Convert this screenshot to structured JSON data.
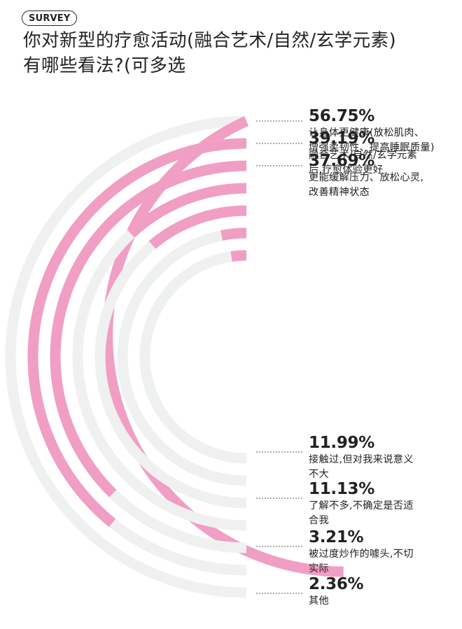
{
  "badge": "SURVEY",
  "title_line1": "你对新型的疗愈活动(融合艺术/自然/玄学元素)",
  "title_line2": "有哪些看法?(可多选",
  "colors": {
    "fill": "#f19ec4",
    "track": "#eff1f1",
    "leader": "#555555"
  },
  "chart_data": {
    "type": "radial-bar",
    "max": 100,
    "unit": "%",
    "categories": [
      "让身体更健康(放松肌肉、增强柔韧性、提高睡眠质量)",
      "融合艺术/自然/玄学元素后,疗愈体验更好",
      "更能缓解压力、放松心灵,改善精神状态",
      "接触过,但对我来说意义不大",
      "了解不多,不确定是否适合我",
      "被过度炒作的噱头,不切实际",
      "其他"
    ],
    "values": [
      56.75,
      39.19,
      37.69,
      11.99,
      11.13,
      3.21,
      2.36
    ],
    "labels": [
      {
        "pct": "56.75%",
        "lines": [
          "让身体更健康(放松肌肉、",
          "增强柔韧性、提高睡眠质量)"
        ]
      },
      {
        "pct": "39.19%",
        "lines": [
          "融合艺术/自然/玄学元素",
          "后,疗愈体验更好"
        ]
      },
      {
        "pct": "37.69%",
        "lines": [
          "更能缓解压力、放松心灵,",
          "改善精神状态"
        ]
      },
      {
        "pct": "11.99%",
        "lines": [
          "接触过,但对我来说意义",
          "不大"
        ]
      },
      {
        "pct": "11.13%",
        "lines": [
          "了解不多,不确定是否适",
          "合我"
        ]
      },
      {
        "pct": "3.21%",
        "lines": [
          "被过度炒作的噱头,不切",
          "实际"
        ]
      },
      {
        "pct": "2.36%",
        "lines": [
          "其他"
        ]
      }
    ]
  }
}
